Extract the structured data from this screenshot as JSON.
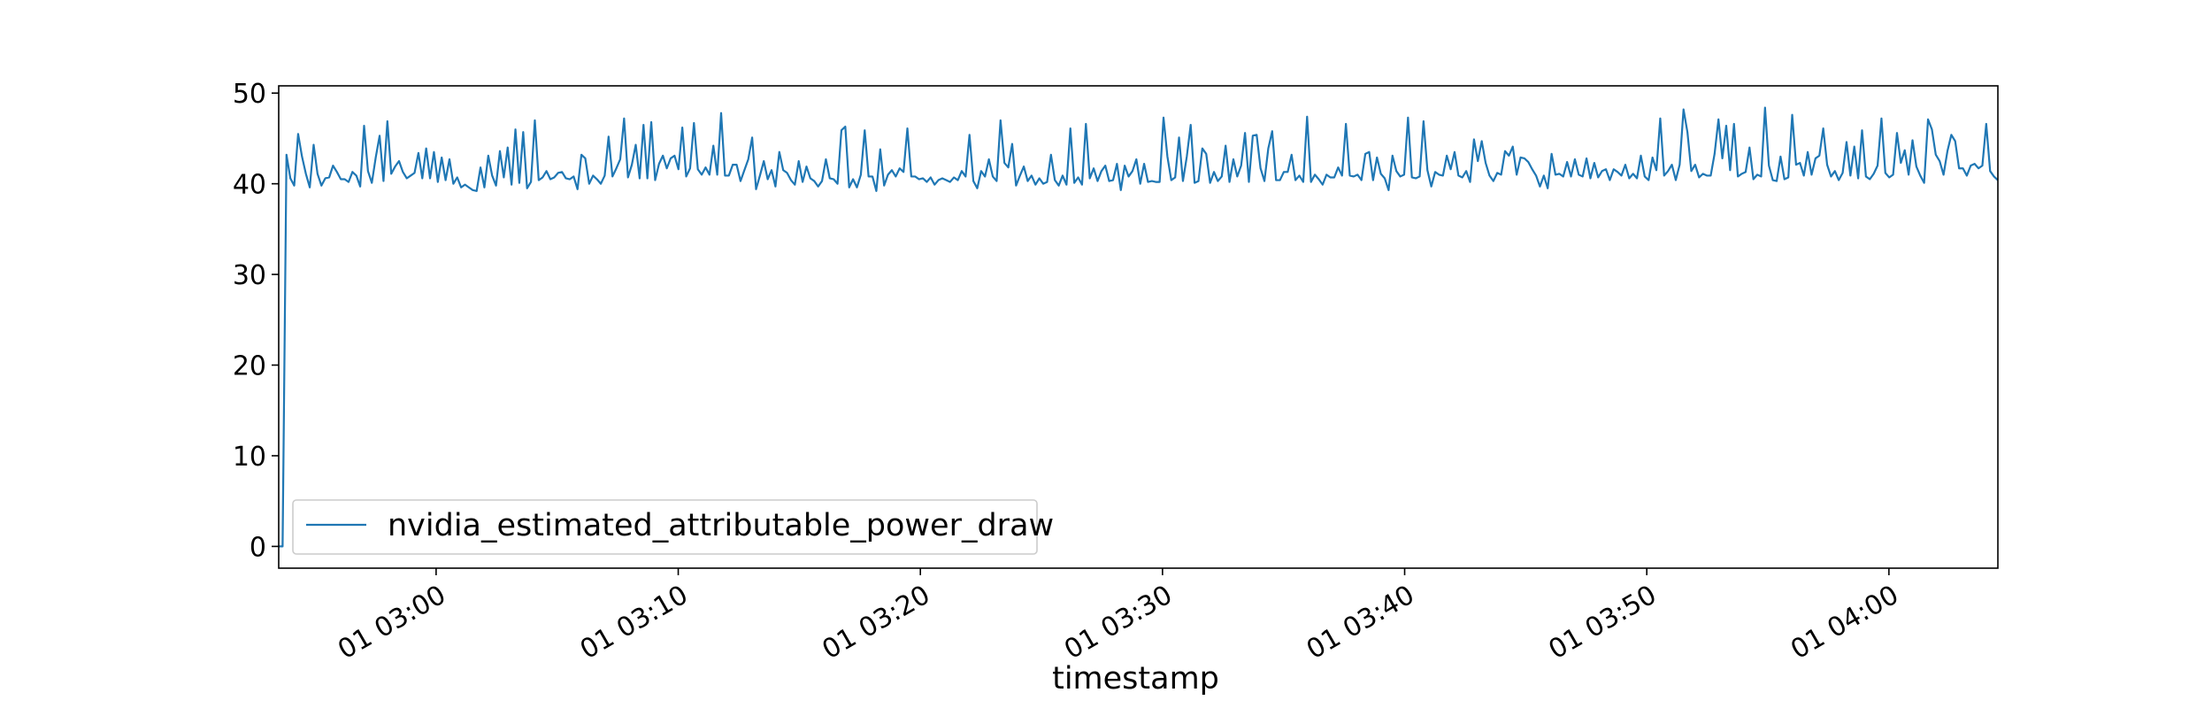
{
  "chart_data": {
    "type": "line",
    "title": "",
    "xlabel": "timestamp",
    "ylabel": "",
    "x_tick_labels": [
      "01 03:00",
      "01 03:10",
      "01 03:20",
      "01 03:30",
      "01 03:40",
      "01 03:50",
      "01 04:00"
    ],
    "x_tick_minutes": [
      0,
      10,
      20,
      30,
      40,
      50,
      60
    ],
    "xlim_minutes": [
      -6.5,
      64.5
    ],
    "y_ticks": [
      0,
      10,
      20,
      30,
      40,
      50
    ],
    "y_tick_labels": [
      "0",
      "10",
      "20",
      "30",
      "40",
      "50"
    ],
    "ylim": [
      -2.4,
      50.8
    ],
    "grid": false,
    "legend_position": "lower-left",
    "series": [
      {
        "name": "nvidia_estimated_attributable_power_draw",
        "color": "#1f77b4",
        "x_start": "01 02:53:30",
        "x_end": "01 04:04:30",
        "values": [
          0.0,
          0.0,
          43.2,
          40.6,
          39.8,
          45.5,
          43.0,
          41.1,
          39.6,
          44.3,
          41.1,
          39.8,
          40.6,
          40.7,
          42.0,
          41.3,
          40.5,
          40.5,
          40.2,
          41.3,
          40.9,
          39.7,
          46.4,
          41.4,
          40.1,
          42.9,
          45.3,
          40.3,
          46.9,
          41.1,
          41.9,
          42.5,
          41.3,
          40.6,
          40.9,
          41.2,
          43.4,
          40.6,
          43.9,
          40.6,
          43.5,
          40.2,
          42.9,
          40.4,
          42.7,
          40.0,
          40.7,
          39.6,
          39.9,
          39.6,
          39.3,
          39.2,
          41.8,
          39.6,
          43.1,
          40.9,
          39.8,
          43.6,
          40.7,
          44.0,
          39.9,
          46.0,
          40.1,
          45.7,
          39.5,
          40.2,
          47.0,
          40.4,
          40.7,
          41.4,
          40.5,
          40.7,
          41.2,
          41.3,
          40.6,
          40.5,
          40.8,
          39.4,
          43.2,
          42.8,
          40.0,
          40.9,
          40.5,
          40.0,
          40.9,
          45.2,
          40.8,
          41.7,
          42.7,
          47.2,
          40.7,
          42.1,
          44.3,
          40.6,
          46.5,
          40.6,
          46.8,
          40.4,
          42.2,
          43.1,
          41.7,
          42.8,
          43.1,
          41.6,
          46.2,
          40.8,
          41.7,
          46.7,
          41.6,
          41.0,
          41.8,
          41.0,
          44.2,
          41.0,
          47.8,
          40.9,
          40.9,
          42.1,
          42.1,
          40.3,
          41.5,
          42.7,
          45.1,
          39.4,
          40.9,
          42.5,
          40.5,
          41.5,
          39.7,
          43.5,
          41.5,
          41.2,
          40.4,
          39.9,
          42.5,
          40.2,
          41.9,
          40.6,
          40.3,
          39.7,
          40.3,
          42.7,
          40.6,
          40.5,
          40.0,
          45.9,
          46.3,
          39.6,
          40.5,
          39.6,
          41.0,
          45.9,
          40.8,
          40.8,
          39.2,
          43.8,
          39.8,
          41.0,
          41.5,
          40.8,
          41.7,
          41.3,
          46.1,
          40.8,
          40.8,
          40.5,
          40.6,
          40.2,
          40.7,
          39.9,
          40.4,
          40.6,
          40.4,
          40.2,
          40.7,
          40.4,
          41.4,
          40.8,
          45.4,
          40.3,
          39.5,
          41.4,
          40.8,
          42.7,
          40.8,
          40.3,
          47.0,
          42.3,
          41.8,
          44.4,
          39.8,
          40.9,
          41.9,
          40.3,
          40.9,
          39.9,
          40.6,
          40.0,
          40.2,
          43.2,
          40.4,
          39.8,
          40.9,
          39.9,
          46.1,
          40.1,
          40.7,
          39.9,
          46.6,
          40.6,
          41.7,
          40.3,
          41.4,
          42.0,
          40.3,
          40.4,
          42.2,
          39.3,
          42.0,
          40.8,
          41.4,
          42.7,
          40.0,
          42.2,
          40.2,
          40.3,
          40.2,
          40.2,
          47.3,
          43.0,
          40.4,
          40.7,
          45.1,
          40.3,
          43.0,
          46.5,
          40.1,
          40.3,
          43.9,
          43.3,
          40.1,
          41.3,
          40.3,
          40.8,
          44.2,
          40.2,
          42.7,
          40.8,
          42.0,
          45.6,
          40.2,
          45.3,
          45.4,
          41.7,
          40.3,
          43.9,
          45.8,
          40.4,
          40.4,
          41.3,
          41.3,
          43.2,
          40.4,
          40.9,
          40.2,
          47.4,
          40.2,
          41.0,
          40.5,
          39.9,
          41.0,
          40.7,
          40.7,
          41.8,
          40.9,
          46.6,
          40.9,
          40.8,
          41.0,
          40.4,
          43.3,
          43.5,
          40.4,
          42.9,
          41.1,
          40.6,
          39.3,
          43.1,
          41.4,
          40.8,
          41.0,
          47.3,
          40.7,
          40.6,
          40.8,
          46.9,
          41.5,
          39.7,
          41.3,
          41.0,
          40.9,
          43.1,
          41.6,
          43.5,
          40.9,
          40.7,
          41.4,
          40.2,
          44.9,
          42.5,
          44.7,
          42.3,
          40.9,
          40.3,
          41.2,
          41.0,
          43.6,
          43.1,
          44.1,
          41.0,
          42.9,
          42.8,
          42.4,
          41.6,
          40.9,
          39.7,
          40.9,
          39.5,
          43.3,
          41.0,
          41.1,
          40.8,
          42.4,
          40.8,
          42.7,
          41.0,
          40.8,
          42.8,
          40.6,
          42.3,
          40.7,
          41.4,
          41.6,
          40.4,
          41.6,
          41.3,
          40.9,
          42.1,
          40.6,
          41.1,
          40.6,
          43.1,
          40.8,
          40.4,
          42.9,
          41.5,
          47.2,
          40.9,
          41.4,
          42.1,
          40.4,
          42.1,
          48.2,
          45.7,
          41.4,
          42.1,
          40.7,
          41.1,
          40.9,
          40.9,
          43.3,
          47.1,
          42.8,
          46.4,
          41.5,
          46.6,
          40.8,
          41.1,
          41.3,
          44.0,
          40.5,
          41.0,
          40.8,
          48.4,
          42.0,
          40.4,
          40.3,
          43.0,
          40.5,
          40.7,
          47.6,
          42.1,
          42.3,
          40.9,
          43.5,
          41.0,
          42.8,
          43.1,
          46.1,
          42.1,
          40.8,
          41.4,
          40.4,
          41.2,
          44.6,
          40.9,
          44.1,
          40.6,
          45.9,
          40.8,
          40.5,
          41.1,
          42.0,
          47.2,
          41.2,
          40.7,
          41.0,
          45.6,
          42.3,
          43.7,
          41.0,
          44.8,
          41.9,
          40.9,
          40.1,
          47.1,
          46.0,
          43.2,
          42.5,
          41.0,
          43.6,
          45.4,
          44.7,
          41.7,
          41.7,
          40.9,
          42.0,
          42.2,
          41.7,
          42.0,
          46.6,
          41.4,
          40.8,
          40.4
        ]
      }
    ]
  }
}
